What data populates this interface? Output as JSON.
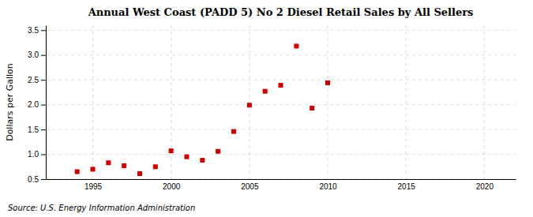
{
  "chart_data": {
    "type": "scatter",
    "title": "Annual West Coast (PADD 5) No 2 Diesel Retail Sales by All Sellers",
    "ylabel": "Dollars per Gallon",
    "annotations": [
      "Source: U.S. Energy Information Administration"
    ],
    "x": [
      1994,
      1995,
      1996,
      1997,
      1998,
      1999,
      2000,
      2001,
      2002,
      2003,
      2004,
      2005,
      2006,
      2007,
      2008,
      2009,
      2010
    ],
    "values": [
      0.65,
      0.7,
      0.83,
      0.77,
      0.61,
      0.75,
      1.07,
      0.95,
      0.88,
      1.06,
      1.46,
      1.99,
      2.27,
      2.39,
      3.18,
      1.93,
      2.44
    ],
    "color": "#cc0000",
    "marker": "square",
    "xlim": [
      1992,
      2022
    ],
    "xticks": [
      1995,
      2000,
      2005,
      2010,
      2015,
      2020
    ],
    "ylim": [
      0.5,
      3.6
    ],
    "yticks": [
      0.5,
      {
        "value": 1.0,
        "label": "1.0"
      },
      1.5,
      {
        "value": 2.0,
        "label": "2.0"
      },
      2.5,
      {
        "value": 3.0,
        "label": "3.0"
      },
      3.5
    ],
    "grid": true
  }
}
